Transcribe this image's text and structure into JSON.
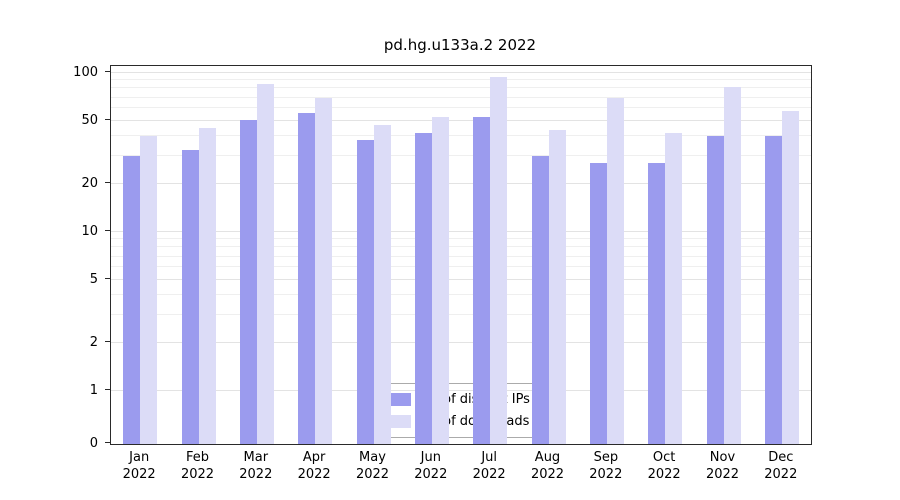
{
  "chart_data": {
    "type": "bar",
    "title": "pd.hg.u133a.2 2022",
    "scale": "log",
    "categories": [
      "Jan",
      "Feb",
      "Mar",
      "Apr",
      "May",
      "Jun",
      "Jul",
      "Aug",
      "Sep",
      "Oct",
      "Nov",
      "Dec"
    ],
    "year_label": "2022",
    "series": [
      {
        "name": "Nb of distinct IPs",
        "color": "#9b9bee",
        "values": [
          30,
          33,
          51,
          56,
          38,
          42,
          53,
          30,
          27,
          27,
          40,
          40
        ]
      },
      {
        "name": "Nb of downloads",
        "color": "#dcdcf7",
        "values": [
          40,
          45,
          85,
          70,
          47,
          53,
          95,
          44,
          70,
          42,
          82,
          58
        ]
      }
    ],
    "yticks": [
      0,
      1,
      2,
      5,
      10,
      20,
      50,
      100
    ],
    "ylim": [
      0,
      100
    ],
    "grid": true,
    "legend_position": "bottom-center"
  }
}
